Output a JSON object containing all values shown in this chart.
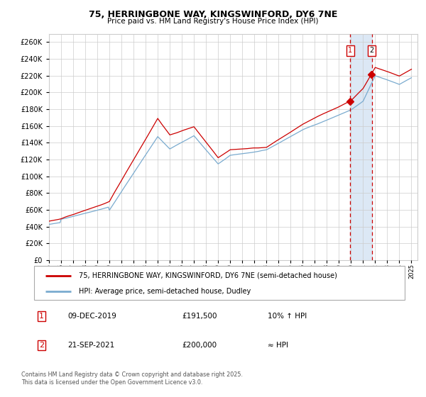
{
  "title": "75, HERRINGBONE WAY, KINGSWINFORD, DY6 7NE",
  "subtitle": "Price paid vs. HM Land Registry's House Price Index (HPI)",
  "yticks": [
    0,
    20000,
    40000,
    60000,
    80000,
    100000,
    120000,
    140000,
    160000,
    180000,
    200000,
    220000,
    240000,
    260000
  ],
  "ylim": [
    0,
    270000
  ],
  "xlim": [
    1995.0,
    2025.5
  ],
  "legend_line1": "75, HERRINGBONE WAY, KINGSWINFORD, DY6 7NE (semi-detached house)",
  "legend_line2": "HPI: Average price, semi-detached house, Dudley",
  "annotation1_box": "1",
  "annotation1_date": "09-DEC-2019",
  "annotation1_price": "£191,500",
  "annotation1_hpi": "10% ↑ HPI",
  "annotation2_box": "2",
  "annotation2_date": "21-SEP-2021",
  "annotation2_price": "£200,000",
  "annotation2_hpi": "≈ HPI",
  "footer": "Contains HM Land Registry data © Crown copyright and database right 2025.\nThis data is licensed under the Open Government Licence v3.0.",
  "line1_color": "#cc0000",
  "line2_color": "#7aabcf",
  "vline_color": "#cc0000",
  "shade_color": "#dce8f5",
  "background_color": "#ffffff",
  "grid_color": "#cccccc",
  "marker1_x": 2019.92,
  "marker2_x": 2021.72,
  "sale1_y": 191500,
  "sale2_y": 200000
}
